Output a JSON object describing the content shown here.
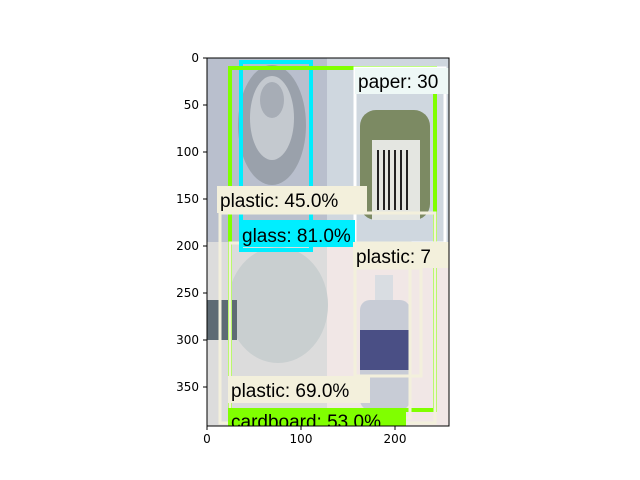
{
  "axes": {
    "x_ticks": [
      "0",
      "100",
      "200"
    ],
    "y_ticks": [
      "0",
      "50",
      "100",
      "150",
      "200",
      "250",
      "300",
      "350"
    ]
  },
  "photo": {
    "description_free": true,
    "tiles": [
      {
        "id": "top-left",
        "color": "#b9bfcd"
      },
      {
        "id": "top-right",
        "color": "#cfd7df"
      },
      {
        "id": "bottom-left",
        "color": "#d9dadb"
      },
      {
        "id": "bottom-right",
        "color": "#efe7e6"
      }
    ]
  },
  "detections": [
    {
      "label": "paper: 30",
      "color": "#ffffff",
      "label_bg": "#eef8f6"
    },
    {
      "label": "plastic: 45.0%",
      "color": "#f3f0dc",
      "label_bg": "#f3f0dc"
    },
    {
      "label": "glass: 81.0%",
      "color": "#00eeff",
      "label_bg": "#00eeff"
    },
    {
      "label": "plastic: 7",
      "color": "#f3f0dc",
      "label_bg": "#f3f0dc"
    },
    {
      "label": "plastic: 69.0%",
      "color": "#f3f0dc",
      "label_bg": "#f3f0dc"
    },
    {
      "label": "cardboard: 53.0%",
      "color": "#80ff00",
      "label_bg": "#80ff00"
    }
  ]
}
